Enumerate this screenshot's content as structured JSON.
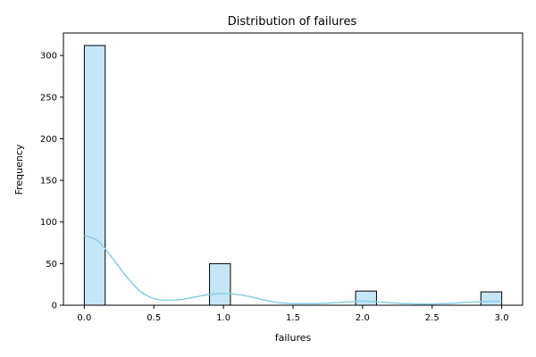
{
  "chart_data": {
    "type": "bar",
    "subtype": "histogram_with_kde",
    "title": "Distribution of failures",
    "xlabel": "failures",
    "ylabel": "Frequency",
    "xlim": [
      -0.15,
      3.15
    ],
    "ylim": [
      0,
      327
    ],
    "x_ticks": [
      0.0,
      0.5,
      1.0,
      1.5,
      2.0,
      2.5,
      3.0
    ],
    "x_tick_labels": [
      "0.0",
      "0.5",
      "1.0",
      "1.5",
      "2.0",
      "2.5",
      "3.0"
    ],
    "y_ticks": [
      0,
      50,
      100,
      150,
      200,
      250,
      300
    ],
    "y_tick_labels": [
      "0",
      "50",
      "100",
      "150",
      "200",
      "250",
      "300"
    ],
    "bins": [
      {
        "x0": 0.0,
        "x1": 0.15,
        "value": 312
      },
      {
        "x0": 0.9,
        "x1": 1.05,
        "value": 50
      },
      {
        "x0": 1.95,
        "x1": 2.1,
        "value": 17
      },
      {
        "x0": 2.85,
        "x1": 3.0,
        "value": 16
      }
    ],
    "kde": {
      "x": [
        0.0,
        0.1,
        0.2,
        0.3,
        0.4,
        0.5,
        0.6,
        0.7,
        0.8,
        0.9,
        1.0,
        1.1,
        1.2,
        1.3,
        1.4,
        1.5,
        1.6,
        1.7,
        1.8,
        1.9,
        2.0,
        2.1,
        2.2,
        2.3,
        2.4,
        2.5,
        2.6,
        2.7,
        2.8,
        2.9,
        3.0
      ],
      "y": [
        84,
        77,
        57,
        35,
        17,
        8,
        6,
        7,
        10,
        13,
        14,
        13,
        10,
        6,
        3,
        2,
        2,
        2,
        3,
        4,
        5,
        4,
        3,
        2,
        1.5,
        1.5,
        2,
        3,
        4,
        4.5,
        5
      ]
    },
    "bar_fill": "#c5e6f5",
    "bar_edge": "#000000",
    "kde_color": "#87ceeb",
    "grid": false,
    "legend": "none"
  }
}
